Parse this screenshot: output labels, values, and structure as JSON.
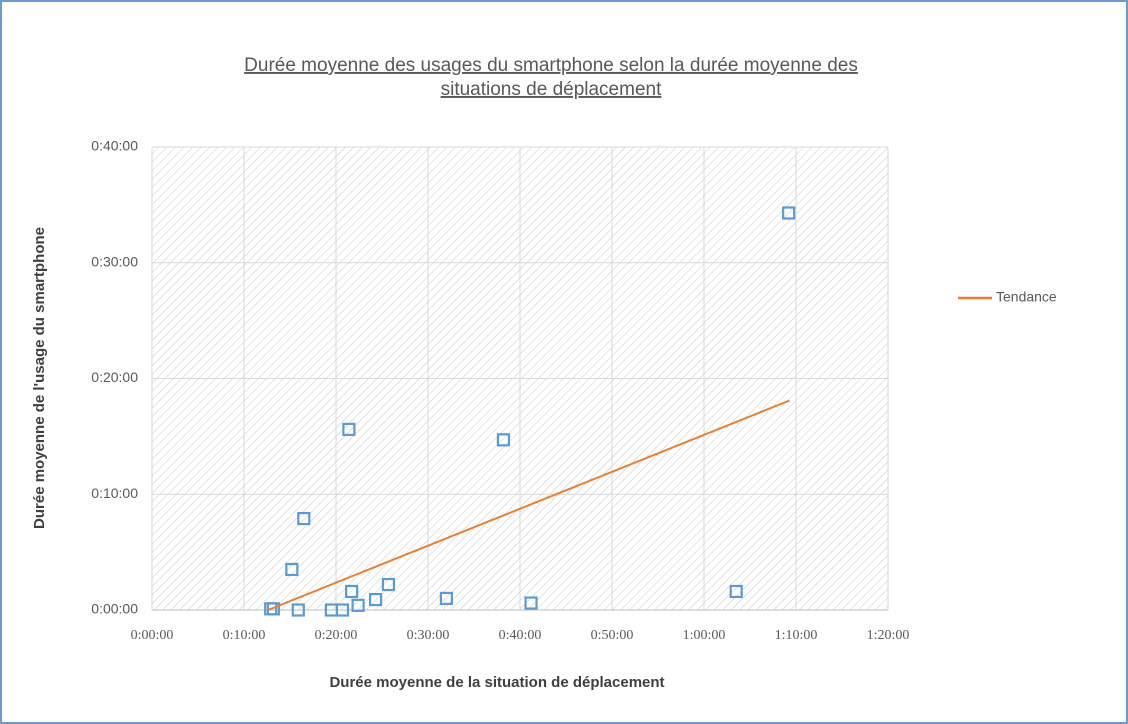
{
  "chart_data": {
    "type": "scatter",
    "title": [
      "Durée moyenne des usages du smartphone selon la durée moyenne des",
      "situations de déplacement"
    ],
    "x_label": "Durée moyenne de la situation de déplacement",
    "y_label": "Durée moyenne de l'usage du smartphone",
    "series": [
      {
        "style": "marker",
        "color": "#5b9bd5",
        "x": [
          12.9,
          13.2,
          15.2,
          15.9,
          16.5,
          19.5,
          20.7,
          21.4,
          21.7,
          22.4,
          24.3,
          25.7,
          32.0,
          38.2,
          41.2,
          63.5,
          69.2
        ],
        "values": [
          0.1,
          0.1,
          3.5,
          0,
          7.9,
          0,
          0,
          15.6,
          1.6,
          0.4,
          0.9,
          2.2,
          1.0,
          14.7,
          0.6,
          1.6,
          34.3
        ]
      },
      {
        "name": "Tendance",
        "style": "line",
        "color": "#ed7d31",
        "x": [
          12.6,
          69.3
        ],
        "values": [
          0,
          18.1
        ]
      }
    ],
    "xlim": [
      0,
      80
    ],
    "xticks": [
      {
        "value": 0,
        "label": "0:00:00"
      },
      {
        "value": 10,
        "label": "0:10:00"
      },
      {
        "value": 20,
        "label": "0:20:00"
      },
      {
        "value": 30,
        "label": "0:30:00"
      },
      {
        "value": 40,
        "label": "0:40:00"
      },
      {
        "value": 50,
        "label": "0:50:00"
      },
      {
        "value": 60,
        "label": "1:00:00"
      },
      {
        "value": 70,
        "label": "1:10:00"
      },
      {
        "value": 80,
        "label": "1:20:00"
      }
    ],
    "ylim": [
      0,
      40
    ],
    "yticks": [
      {
        "value": 0,
        "label": "0:00:00"
      },
      {
        "value": 10,
        "label": "0:10:00"
      },
      {
        "value": 20,
        "label": "0:20:00"
      },
      {
        "value": 30,
        "label": "0:30:00"
      },
      {
        "value": 40,
        "label": "0:40:00"
      }
    ],
    "grid": true,
    "legend": "right"
  }
}
